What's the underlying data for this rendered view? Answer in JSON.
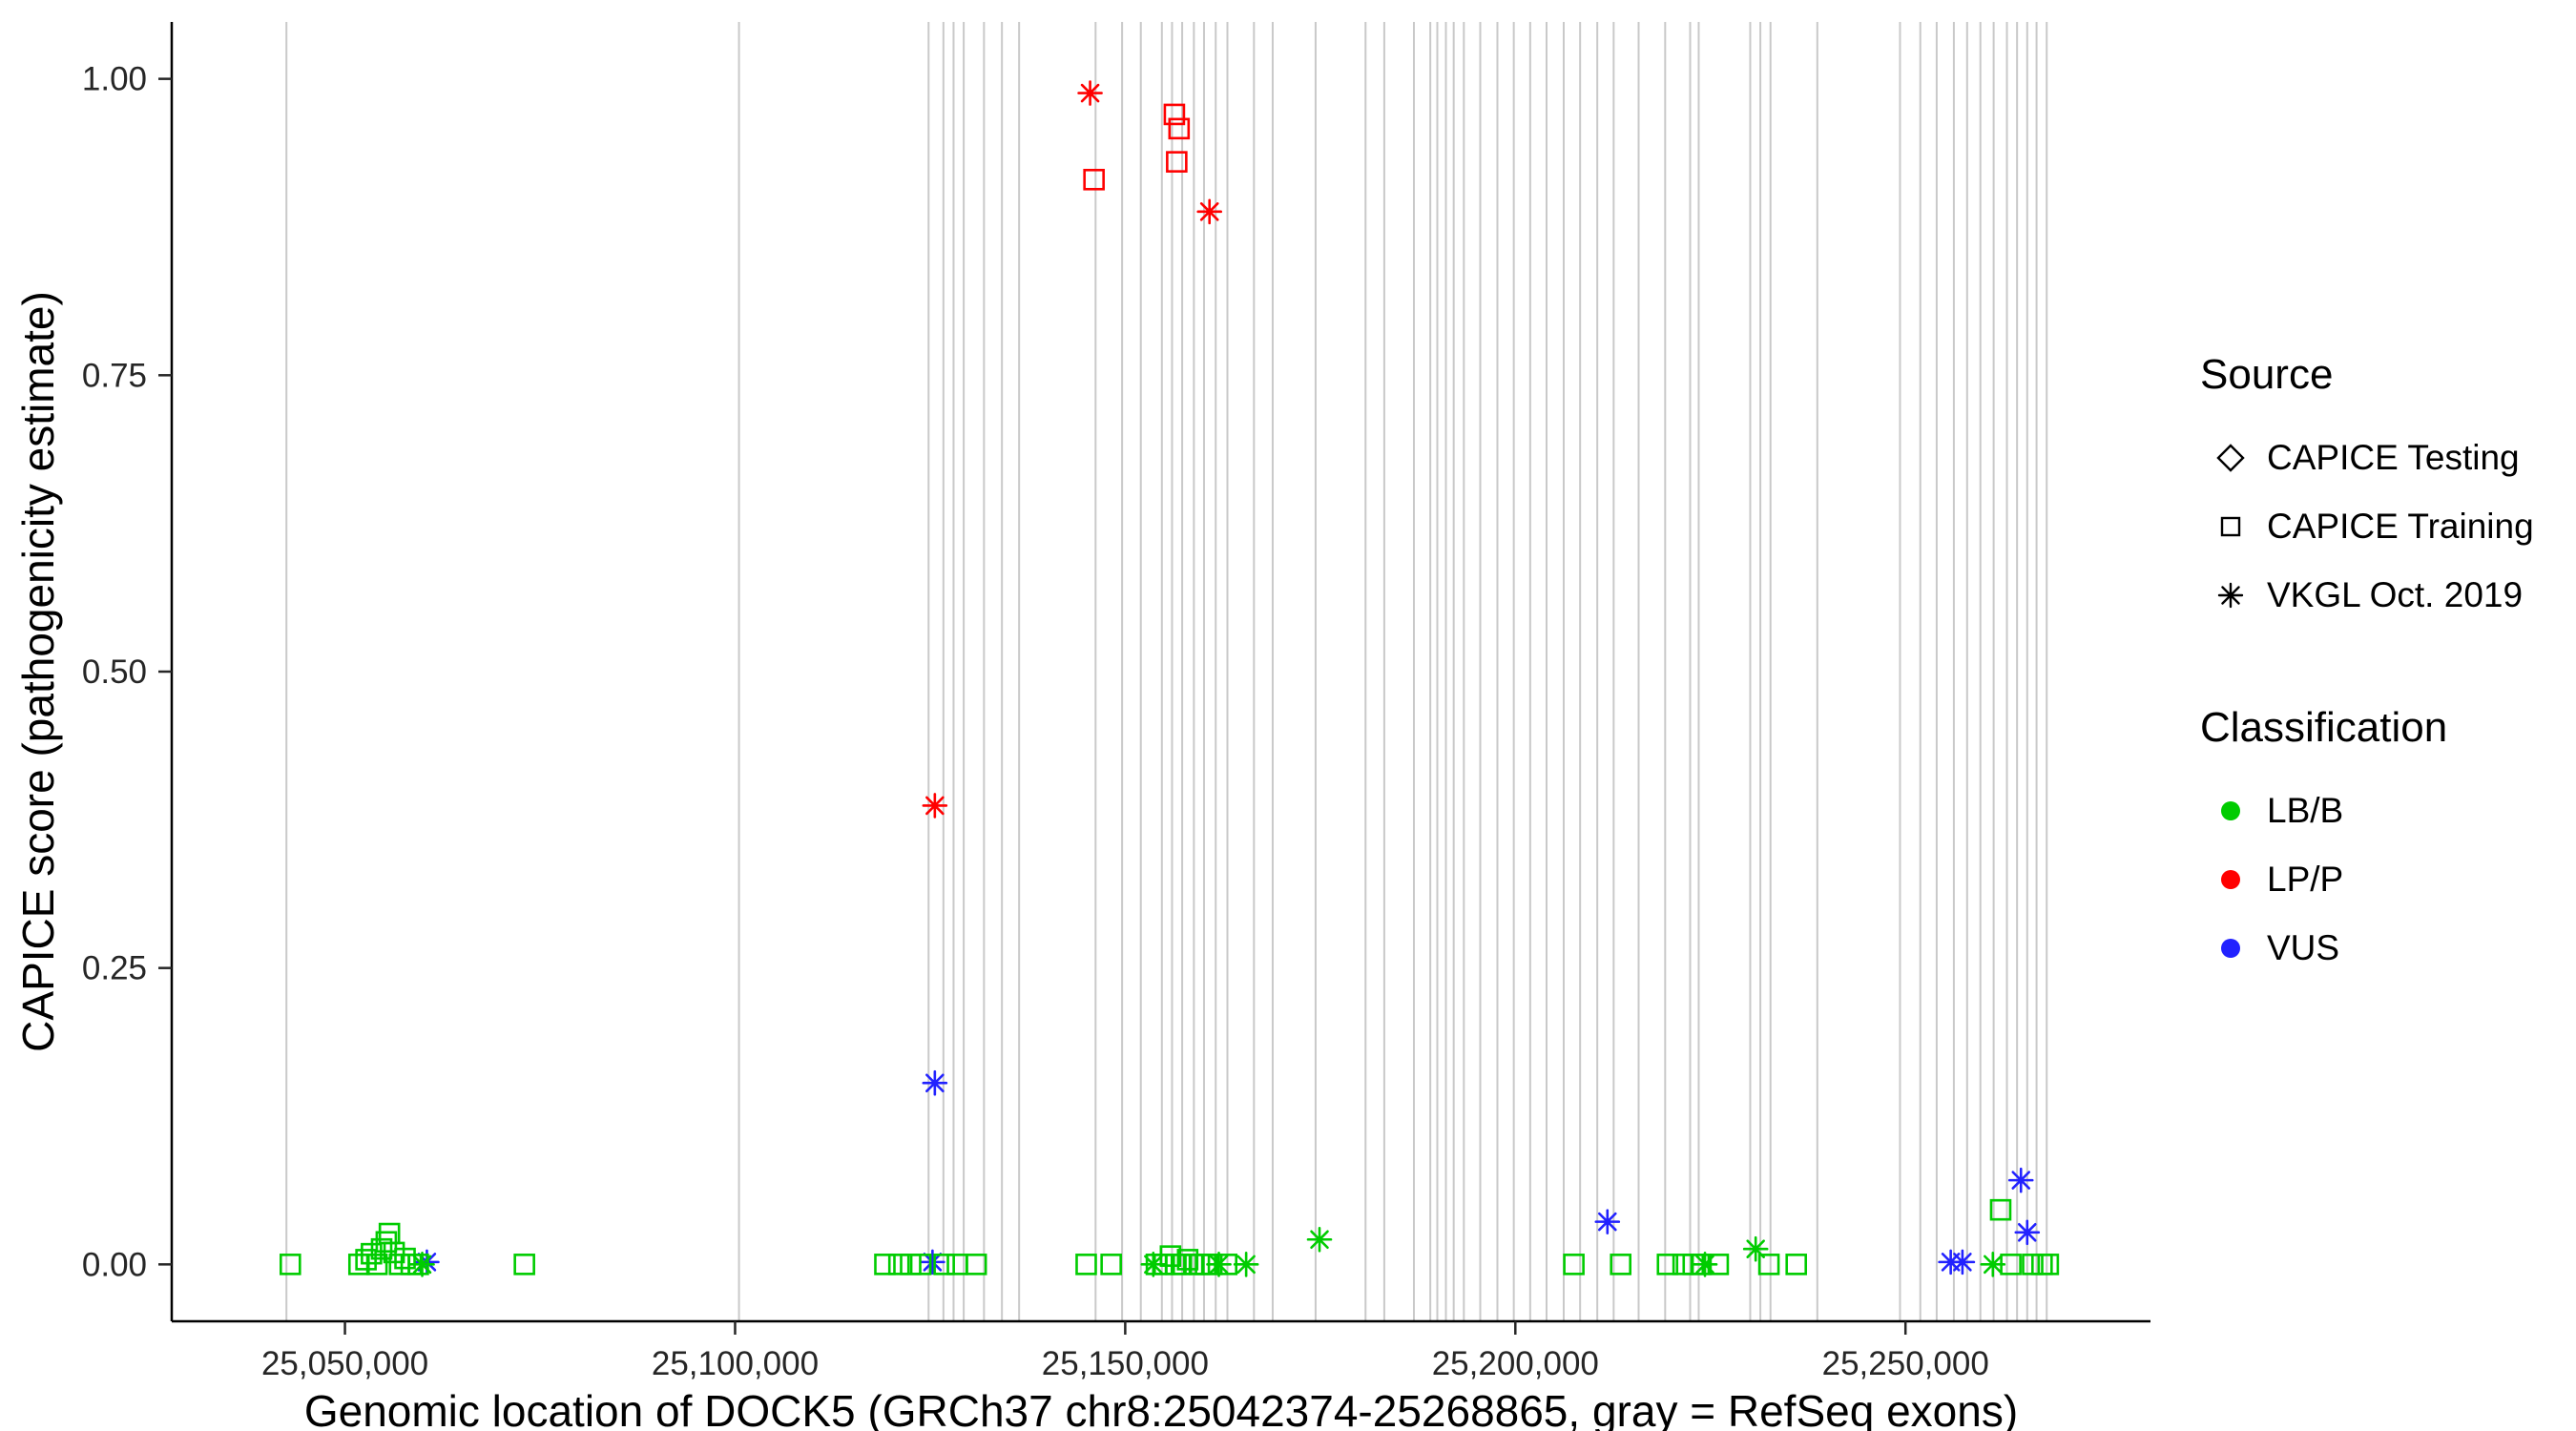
{
  "figure": {
    "x_axis_title": "Genomic location of DOCK5 (GRCh37 chr8:25042374-25268865, gray = RefSeq exons)",
    "y_axis_title": "CAPICE score (pathogenicity estimate)"
  },
  "legend": {
    "source": {
      "title": "Source",
      "items": [
        {
          "label": "CAPICE Testing",
          "shape": "diamond"
        },
        {
          "label": "CAPICE Training",
          "shape": "square"
        },
        {
          "label": "VKGL Oct. 2019",
          "shape": "asterisk"
        }
      ]
    },
    "classification": {
      "title": "Classification",
      "items": [
        {
          "label": "LB/B",
          "color": "#00cc00"
        },
        {
          "label": "LP/P",
          "color": "#ff0000"
        },
        {
          "label": "VUS",
          "color": "#2222ff"
        }
      ]
    }
  },
  "chart_data": {
    "type": "scatter",
    "title": "",
    "xlabel": "Genomic location of DOCK5 (GRCh37 chr8:25042374-25268865, gray = RefSeq exons)",
    "ylabel": "CAPICE score (pathogenicity estimate)",
    "xlim": [
      25027800,
      25281400
    ],
    "ylim": [
      0,
      1
    ],
    "grid": false,
    "legend_position": "right",
    "x_ticks": [
      {
        "value": 25050000,
        "label": "25,050,000"
      },
      {
        "value": 25100000,
        "label": "25,100,000"
      },
      {
        "value": 25150000,
        "label": "25,150,000"
      },
      {
        "value": 25200000,
        "label": "25,200,000"
      },
      {
        "value": 25250000,
        "label": "25,250,000"
      }
    ],
    "y_ticks": [
      {
        "value": 0.0,
        "label": "0.00"
      },
      {
        "value": 0.25,
        "label": "0.25"
      },
      {
        "value": 0.5,
        "label": "0.50"
      },
      {
        "value": 0.75,
        "label": "0.75"
      },
      {
        "value": 1.0,
        "label": "1.00"
      }
    ],
    "exon_color": "#c9c9c9",
    "class_colors": {
      "LB/B": "#00cc00",
      "LP/P": "#ff0000",
      "VUS": "#2222ff"
    },
    "exons": [
      25042500,
      25100500,
      25124800,
      25126700,
      25128000,
      25129300,
      25131900,
      25134200,
      25136400,
      25146200,
      25149600,
      25152000,
      25154700,
      25156000,
      25157300,
      25158800,
      25160100,
      25161600,
      25163100,
      25166500,
      25168900,
      25174400,
      25180800,
      25183200,
      25187000,
      25189100,
      25190000,
      25191100,
      25192100,
      25193400,
      25195500,
      25197700,
      25199800,
      25201900,
      25204000,
      25206200,
      25208300,
      25210500,
      25212600,
      25215800,
      25219200,
      25222400,
      25223500,
      25230100,
      25231400,
      25232700,
      25238700,
      25249300,
      25251900,
      25254000,
      25256200,
      25257900,
      25259600,
      25261300,
      25263000,
      25264300,
      25265600,
      25266800,
      25268100
    ],
    "points": [
      {
        "x": 25145500,
        "y": 0.988,
        "shape": "asterisk",
        "class": "LP/P"
      },
      {
        "x": 25146000,
        "y": 0.915,
        "shape": "square",
        "class": "LP/P"
      },
      {
        "x": 25156300,
        "y": 0.97,
        "shape": "square",
        "class": "LP/P"
      },
      {
        "x": 25156900,
        "y": 0.958,
        "shape": "square",
        "class": "LP/P"
      },
      {
        "x": 25156600,
        "y": 0.93,
        "shape": "square",
        "class": "LP/P"
      },
      {
        "x": 25160800,
        "y": 0.888,
        "shape": "asterisk",
        "class": "LP/P"
      },
      {
        "x": 25125600,
        "y": 0.387,
        "shape": "asterisk",
        "class": "LP/P"
      },
      {
        "x": 25125600,
        "y": 0.153,
        "shape": "asterisk",
        "class": "VUS"
      },
      {
        "x": 25125300,
        "y": 0.002,
        "shape": "asterisk",
        "class": "VUS"
      },
      {
        "x": 25060500,
        "y": 0.002,
        "shape": "asterisk",
        "class": "VUS"
      },
      {
        "x": 25211800,
        "y": 0.036,
        "shape": "asterisk",
        "class": "VUS"
      },
      {
        "x": 25255800,
        "y": 0.002,
        "shape": "asterisk",
        "class": "VUS"
      },
      {
        "x": 25257300,
        "y": 0.002,
        "shape": "asterisk",
        "class": "VUS"
      },
      {
        "x": 25264800,
        "y": 0.071,
        "shape": "asterisk",
        "class": "VUS"
      },
      {
        "x": 25265600,
        "y": 0.027,
        "shape": "asterisk",
        "class": "VUS"
      },
      {
        "x": 25043000,
        "y": 0.0,
        "shape": "square",
        "class": "LB/B"
      },
      {
        "x": 25051800,
        "y": 0.0,
        "shape": "square",
        "class": "LB/B"
      },
      {
        "x": 25052700,
        "y": 0.004,
        "shape": "square",
        "class": "LB/B"
      },
      {
        "x": 25053400,
        "y": 0.009,
        "shape": "square",
        "class": "LB/B"
      },
      {
        "x": 25054100,
        "y": 0.0,
        "shape": "square",
        "class": "LB/B"
      },
      {
        "x": 25054700,
        "y": 0.013,
        "shape": "square",
        "class": "LB/B"
      },
      {
        "x": 25055300,
        "y": 0.019,
        "shape": "square",
        "class": "LB/B"
      },
      {
        "x": 25055700,
        "y": 0.026,
        "shape": "square",
        "class": "LB/B"
      },
      {
        "x": 25056300,
        "y": 0.01,
        "shape": "square",
        "class": "LB/B"
      },
      {
        "x": 25057000,
        "y": 0.0,
        "shape": "square",
        "class": "LB/B"
      },
      {
        "x": 25057700,
        "y": 0.005,
        "shape": "square",
        "class": "LB/B"
      },
      {
        "x": 25058500,
        "y": 0.0,
        "shape": "square",
        "class": "LB/B"
      },
      {
        "x": 25059400,
        "y": 0.0,
        "shape": "square",
        "class": "LB/B"
      },
      {
        "x": 25059900,
        "y": 0.0,
        "shape": "asterisk",
        "class": "LB/B"
      },
      {
        "x": 25073000,
        "y": 0.0,
        "shape": "square",
        "class": "LB/B"
      },
      {
        "x": 25119200,
        "y": 0.0,
        "shape": "square",
        "class": "LB/B"
      },
      {
        "x": 25121000,
        "y": 0.0,
        "shape": "square",
        "class": "LB/B"
      },
      {
        "x": 25122500,
        "y": 0.0,
        "shape": "square",
        "class": "LB/B"
      },
      {
        "x": 25123800,
        "y": 0.0,
        "shape": "square",
        "class": "LB/B"
      },
      {
        "x": 25126800,
        "y": 0.0,
        "shape": "square",
        "class": "LB/B"
      },
      {
        "x": 25128500,
        "y": 0.0,
        "shape": "square",
        "class": "LB/B"
      },
      {
        "x": 25130900,
        "y": 0.0,
        "shape": "square",
        "class": "LB/B"
      },
      {
        "x": 25145000,
        "y": 0.0,
        "shape": "square",
        "class": "LB/B"
      },
      {
        "x": 25148200,
        "y": 0.0,
        "shape": "square",
        "class": "LB/B"
      },
      {
        "x": 25153600,
        "y": 0.0,
        "shape": "asterisk",
        "class": "LB/B"
      },
      {
        "x": 25154000,
        "y": 0.0,
        "shape": "square",
        "class": "LB/B"
      },
      {
        "x": 25155000,
        "y": 0.0,
        "shape": "square",
        "class": "LB/B"
      },
      {
        "x": 25155800,
        "y": 0.007,
        "shape": "square",
        "class": "LB/B"
      },
      {
        "x": 25156500,
        "y": 0.0,
        "shape": "square",
        "class": "LB/B"
      },
      {
        "x": 25157200,
        "y": 0.0,
        "shape": "square",
        "class": "LB/B"
      },
      {
        "x": 25158000,
        "y": 0.004,
        "shape": "square",
        "class": "LB/B"
      },
      {
        "x": 25158800,
        "y": 0.0,
        "shape": "square",
        "class": "LB/B"
      },
      {
        "x": 25159500,
        "y": 0.0,
        "shape": "square",
        "class": "LB/B"
      },
      {
        "x": 25160300,
        "y": 0.0,
        "shape": "square",
        "class": "LB/B"
      },
      {
        "x": 25161100,
        "y": 0.0,
        "shape": "square",
        "class": "LB/B"
      },
      {
        "x": 25162000,
        "y": 0.0,
        "shape": "asterisk",
        "class": "LB/B"
      },
      {
        "x": 25163000,
        "y": 0.0,
        "shape": "square",
        "class": "LB/B"
      },
      {
        "x": 25165500,
        "y": 0.0,
        "shape": "asterisk",
        "class": "LB/B"
      },
      {
        "x": 25174900,
        "y": 0.021,
        "shape": "asterisk",
        "class": "LB/B"
      },
      {
        "x": 25207500,
        "y": 0.0,
        "shape": "square",
        "class": "LB/B"
      },
      {
        "x": 25213500,
        "y": 0.0,
        "shape": "square",
        "class": "LB/B"
      },
      {
        "x": 25219500,
        "y": 0.0,
        "shape": "square",
        "class": "LB/B"
      },
      {
        "x": 25221500,
        "y": 0.0,
        "shape": "square",
        "class": "LB/B"
      },
      {
        "x": 25222800,
        "y": 0.0,
        "shape": "square",
        "class": "LB/B"
      },
      {
        "x": 25223800,
        "y": 0.0,
        "shape": "square",
        "class": "LB/B"
      },
      {
        "x": 25224300,
        "y": 0.0,
        "shape": "asterisk",
        "class": "LB/B"
      },
      {
        "x": 25226000,
        "y": 0.0,
        "shape": "square",
        "class": "LB/B"
      },
      {
        "x": 25230800,
        "y": 0.013,
        "shape": "asterisk",
        "class": "LB/B"
      },
      {
        "x": 25232500,
        "y": 0.0,
        "shape": "square",
        "class": "LB/B"
      },
      {
        "x": 25236000,
        "y": 0.0,
        "shape": "square",
        "class": "LB/B"
      },
      {
        "x": 25261200,
        "y": 0.0,
        "shape": "asterisk",
        "class": "LB/B"
      },
      {
        "x": 25262200,
        "y": 0.046,
        "shape": "square",
        "class": "LB/B"
      },
      {
        "x": 25263500,
        "y": 0.0,
        "shape": "square",
        "class": "LB/B"
      },
      {
        "x": 25266300,
        "y": 0.0,
        "shape": "square",
        "class": "LB/B"
      },
      {
        "x": 25267500,
        "y": 0.0,
        "shape": "square",
        "class": "LB/B"
      },
      {
        "x": 25268300,
        "y": 0.0,
        "shape": "square",
        "class": "LB/B"
      }
    ]
  }
}
